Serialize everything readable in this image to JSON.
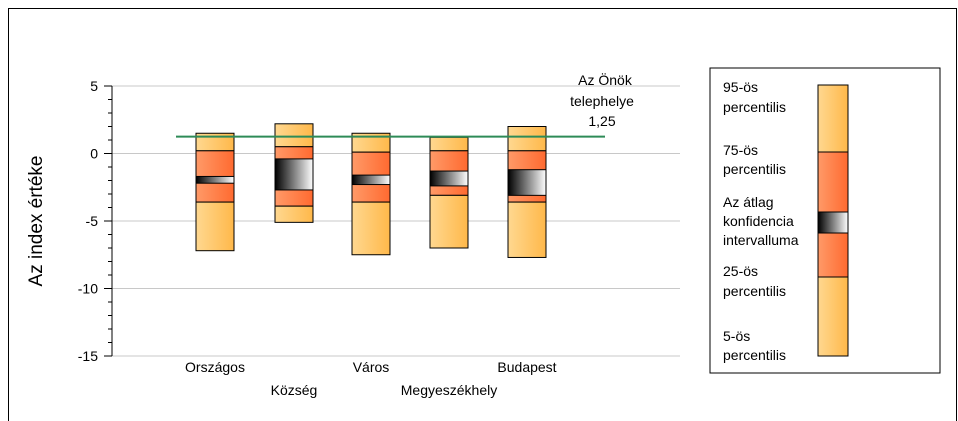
{
  "chart_data": {
    "type": "box",
    "ylabel": "Az index értéke",
    "ylim": [
      -15,
      5
    ],
    "yticks": [
      5,
      0,
      -5,
      -10,
      -15
    ],
    "categories": [
      "Országos",
      "Község",
      "Város",
      "Megyeszékhely",
      "Budapest"
    ],
    "boxes": [
      {
        "category": "Országos",
        "p5": -7.2,
        "p25": -3.6,
        "ci_low": -2.2,
        "ci_high": -1.7,
        "p75": 0.2,
        "p95": 1.5
      },
      {
        "category": "Község",
        "p5": -5.1,
        "p25": -3.9,
        "ci_low": -2.7,
        "ci_high": -0.4,
        "p75": 0.5,
        "p95": 2.2
      },
      {
        "category": "Város",
        "p5": -7.5,
        "p25": -3.6,
        "ci_low": -2.3,
        "ci_high": -1.6,
        "p75": 0.1,
        "p95": 1.5
      },
      {
        "category": "Megyeszékhely",
        "p5": -7.0,
        "p25": -3.1,
        "ci_low": -2.4,
        "ci_high": -1.3,
        "p75": 0.2,
        "p95": 1.2
      },
      {
        "category": "Budapest",
        "p5": -7.7,
        "p25": -3.6,
        "ci_low": -3.1,
        "ci_high": -1.2,
        "p75": 0.2,
        "p95": 2.0
      }
    ],
    "reference_line": {
      "value": 1.25,
      "label_lines": [
        "Az Önök",
        "telephelye",
        "1,25"
      ],
      "color": "#2e8b57"
    },
    "legend": {
      "position": "right",
      "items": [
        [
          "95-ös",
          "percentilis"
        ],
        [
          "75-ös",
          "percentilis"
        ],
        [
          "Az átlag",
          "konfidencia",
          "intervalluma"
        ],
        [
          "25-ös",
          "percentilis"
        ],
        [
          "5-ös",
          "percentilis"
        ]
      ]
    },
    "colors": {
      "outer": "#ffc870",
      "inner": "#ff7a4a",
      "ci_dark": "#000000",
      "grid": "#c8c8c8"
    }
  }
}
